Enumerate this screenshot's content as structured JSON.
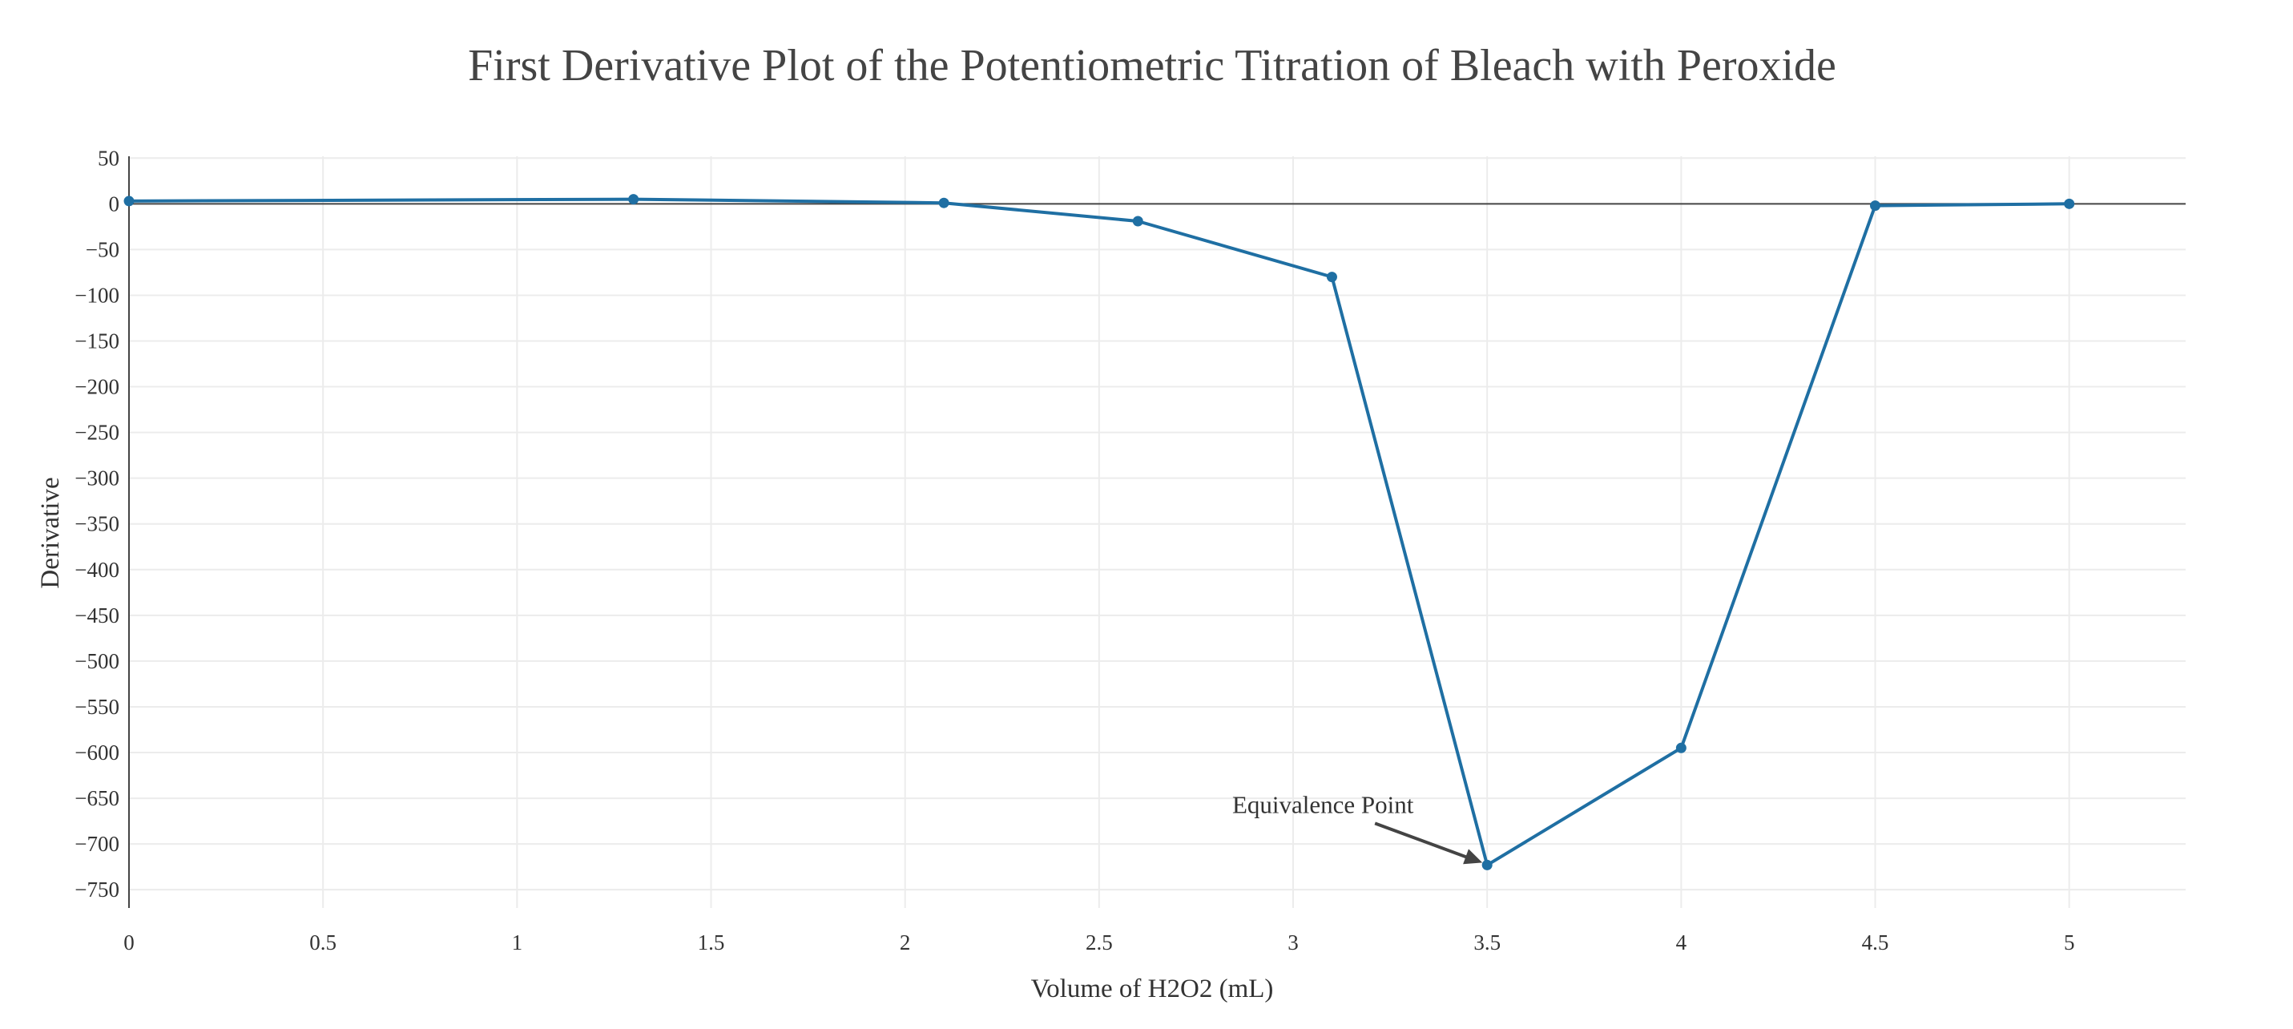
{
  "chart_data": {
    "type": "line",
    "title": "First Derivative Plot of the Potentiometric Titration of Bleach with Peroxide",
    "xlabel": "Volume of H2O2 (mL)",
    "ylabel": "Derivative",
    "xlim": [
      0,
      5.3
    ],
    "ylim": [
      -770,
      52
    ],
    "x_ticks": [
      0,
      0.5,
      1,
      1.5,
      2,
      2.5,
      3,
      3.5,
      4,
      4.5,
      5
    ],
    "y_ticks": [
      50,
      0,
      -50,
      -100,
      -150,
      -200,
      -250,
      -300,
      -350,
      -400,
      -450,
      -500,
      -550,
      -600,
      -650,
      -700,
      -750
    ],
    "grid": true,
    "series": [
      {
        "color": "#1f6fa3",
        "mode": "lines+markers",
        "x": [
          0,
          1.3,
          2.1,
          2.6,
          3.1,
          3.5,
          4.0,
          4.5,
          5.0
        ],
        "y": [
          3,
          5,
          1,
          -19,
          -80,
          -723,
          -595,
          -2,
          0
        ]
      }
    ],
    "annotations": [
      {
        "text": "Equivalence Point",
        "x": 3.5,
        "y": -723,
        "arrow": true
      }
    ]
  }
}
